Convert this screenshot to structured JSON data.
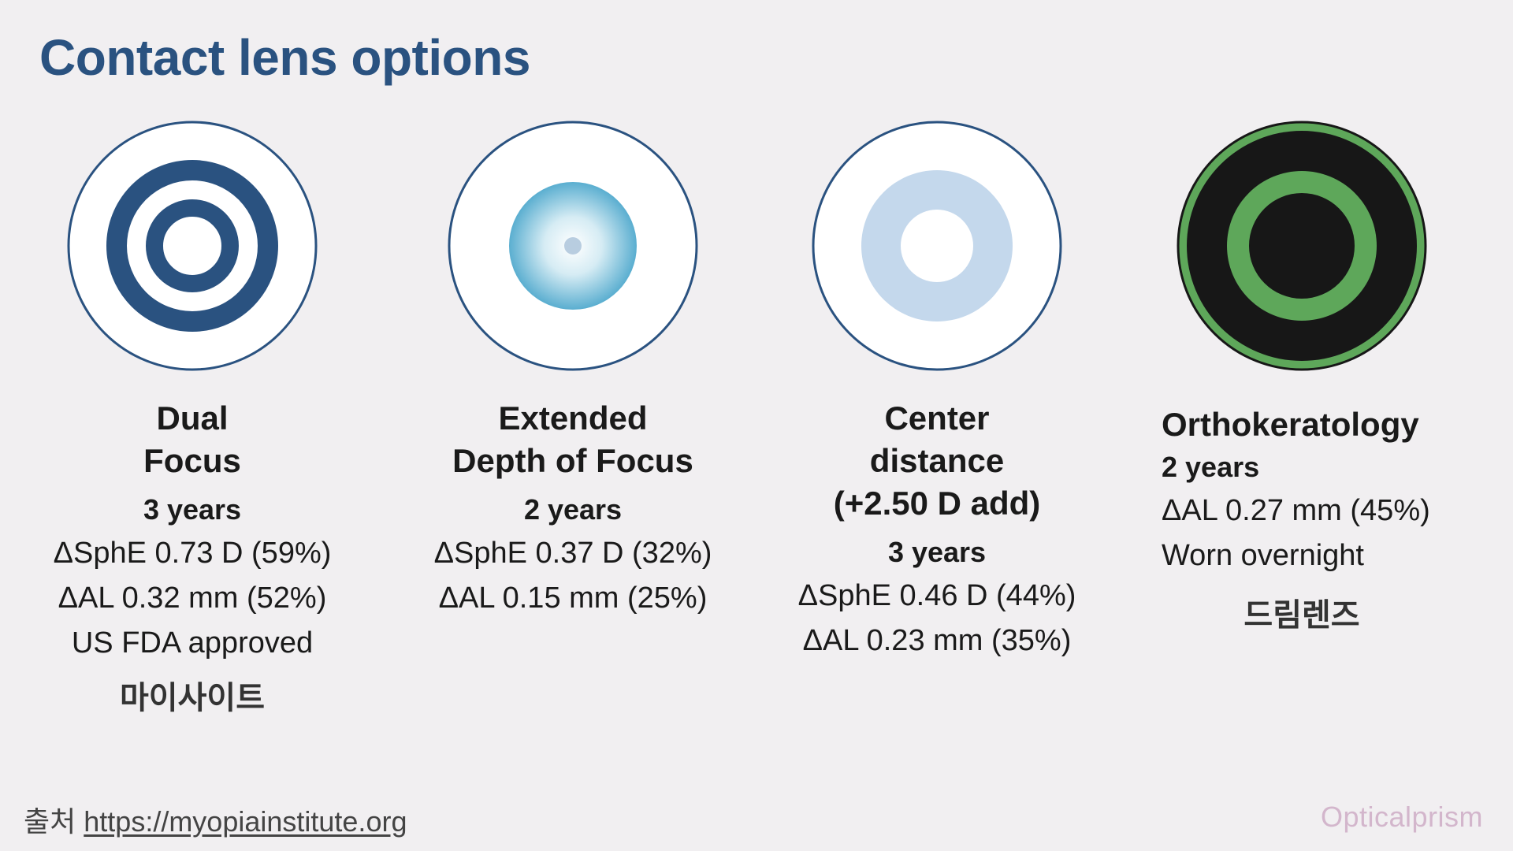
{
  "slide": {
    "title": "Contact lens options"
  },
  "colors": {
    "title": "#2a5280",
    "ring_navy": "#2a5280",
    "gradient_center": "#ffffff",
    "gradient_edge": "#5aaed0",
    "light_blue": "#c4d8ec",
    "ortho_dark": "#171717",
    "ortho_green": "#5ea75a",
    "background": "#f1eff1"
  },
  "options": [
    {
      "icon": "dual-focus-lens-icon",
      "name_lines": [
        "Dual",
        "Focus"
      ],
      "years": "3 years",
      "stats": [
        "ΔSphE 0.73 D (59%)",
        "ΔAL 0.32 mm (52%)",
        "US FDA approved"
      ],
      "brand": "마이사이트"
    },
    {
      "icon": "edof-lens-icon",
      "name_lines": [
        "Extended",
        "Depth of Focus"
      ],
      "years": "2 years",
      "stats": [
        "ΔSphE 0.37 D (32%)",
        "ΔAL 0.15 mm (25%)"
      ],
      "brand": ""
    },
    {
      "icon": "center-distance-lens-icon",
      "name_lines": [
        "Center",
        "distance",
        "(+2.50 D add)"
      ],
      "years": "3 years",
      "stats": [
        "ΔSphE 0.46 D (44%)",
        "ΔAL 0.23 mm (35%)"
      ],
      "brand": ""
    },
    {
      "icon": "orthokeratology-lens-icon",
      "name_lines": [
        "Orthokeratology"
      ],
      "years": "2 years",
      "stats": [
        "ΔAL 0.27 mm (45%)",
        "Worn overnight"
      ],
      "brand": "드림렌즈"
    }
  ],
  "footer": {
    "source_label": "출처",
    "source_url": "https://myopiainstitute.org",
    "brand": "Opticalprism"
  }
}
